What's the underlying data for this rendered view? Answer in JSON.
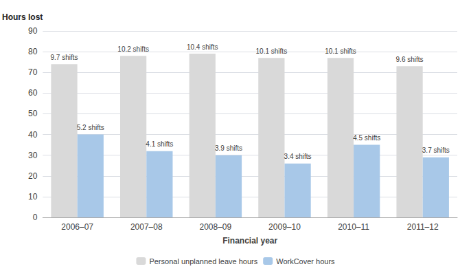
{
  "chart_data": {
    "type": "bar",
    "xlabel": "Financial year",
    "ylabel": "Hours lost",
    "categories": [
      "2006–07",
      "2007–08",
      "2008–09",
      "2009–10",
      "2010–11",
      "2011–12"
    ],
    "series": [
      {
        "name": "Personal unplanned leave hours",
        "color": "#d9d9d9",
        "values": [
          74,
          78,
          79,
          77,
          77,
          73
        ],
        "annotations": [
          "9.7 shifts",
          "10.2 shifts",
          "10.4 shifts",
          "10.1 shifts",
          "10.1 shifts",
          "9.6 shifts"
        ]
      },
      {
        "name": "WorkCover hours",
        "color": "#a8c8e8",
        "values": [
          40,
          32,
          30,
          26,
          35,
          29
        ],
        "annotations": [
          "5.2 shifts",
          "4.1 shifts",
          "3.9 shifts",
          "3.4 shifts",
          "4.5 shifts",
          "3.7 shifts"
        ]
      }
    ],
    "ylim": [
      0,
      90
    ],
    "yticks": [
      0,
      10,
      20,
      30,
      40,
      50,
      60,
      70,
      80,
      90
    ],
    "grid": true,
    "legend": "bottom"
  }
}
